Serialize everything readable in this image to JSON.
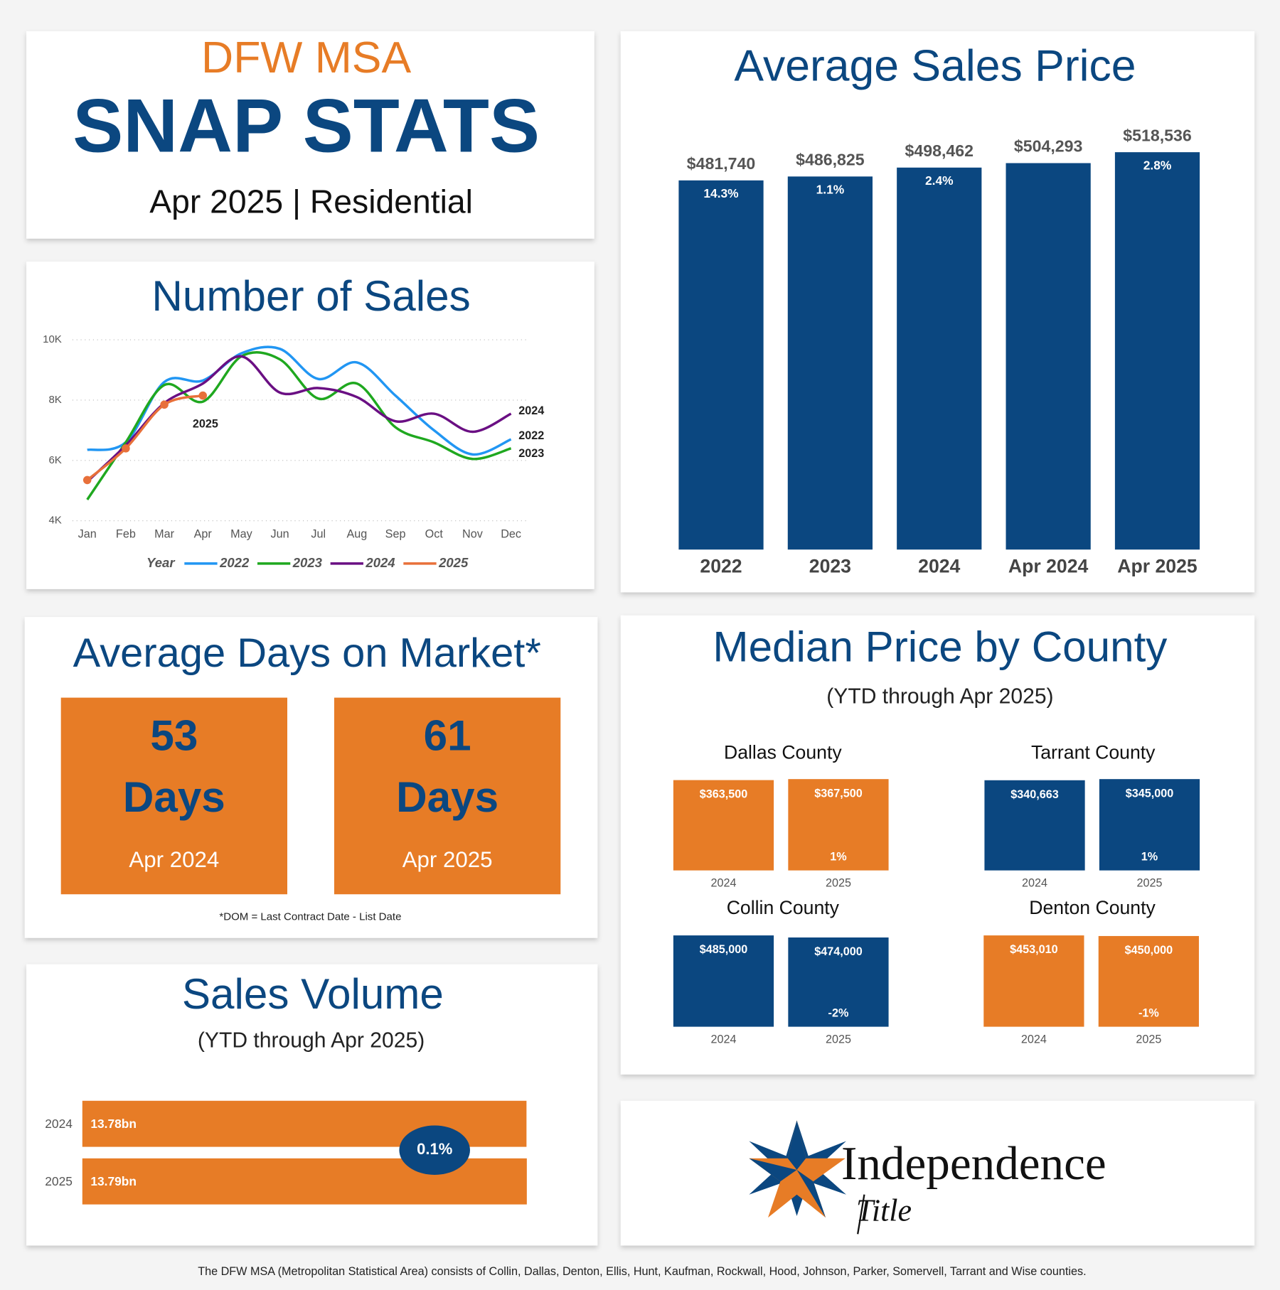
{
  "header": {
    "region": "DFW MSA",
    "title": "SNAP STATS",
    "subtitle": "Apr 2025 | Residential"
  },
  "chart_data": [
    {
      "type": "line",
      "title": "Number of Sales",
      "categories": [
        "Jan",
        "Feb",
        "Mar",
        "Apr",
        "May",
        "Jun",
        "Jul",
        "Aug",
        "Sep",
        "Oct",
        "Nov",
        "Dec"
      ],
      "ylim": [
        4000,
        10000
      ],
      "yticks": [
        {
          "value": 4000,
          "label": "4K"
        },
        {
          "value": 6000,
          "label": "6K"
        },
        {
          "value": 8000,
          "label": "8K"
        },
        {
          "value": 10000,
          "label": "10K"
        }
      ],
      "grid": true,
      "legend_title": "Year",
      "series": [
        {
          "name": "2022",
          "color": "#2196f3",
          "values": [
            6350,
            6600,
            8600,
            8650,
            9550,
            9700,
            8700,
            9250,
            8150,
            7000,
            6200,
            6700
          ]
        },
        {
          "name": "2023",
          "color": "#1fa81f",
          "values": [
            4700,
            6600,
            8500,
            7950,
            9450,
            9350,
            8050,
            8550,
            7100,
            6600,
            6050,
            6400
          ]
        },
        {
          "name": "2024",
          "color": "#6a0f83",
          "values": [
            5300,
            6500,
            7900,
            8550,
            9450,
            8250,
            8400,
            8100,
            7300,
            7550,
            6950,
            7550
          ]
        },
        {
          "name": "2025",
          "color": "#e8703a",
          "values": [
            5350,
            6400,
            7850,
            8150,
            null,
            null,
            null,
            null,
            null,
            null,
            null,
            null
          ]
        }
      ]
    },
    {
      "type": "bar",
      "title": "Average Sales Price",
      "categories": [
        "2022",
        "2023",
        "2024",
        "Apr 2024",
        "Apr 2025"
      ],
      "values": [
        481740,
        486825,
        498462,
        504293,
        518536
      ],
      "value_labels": [
        "$481,740",
        "$486,825",
        "$498,462",
        "$504,293",
        "$518,536"
      ],
      "change_labels": [
        "14.3%",
        "1.1%",
        "2.4%",
        null,
        "2.8%"
      ],
      "color": "#0b4780"
    },
    {
      "type": "cards",
      "title": "Average Days on Market*",
      "values": [
        53,
        61
      ],
      "unit": "Days",
      "categories": [
        "Apr 2024",
        "Apr 2025"
      ],
      "note": "*DOM = Last Contract Date - List Date",
      "color": "#e77c26"
    },
    {
      "type": "panels",
      "title": "Median Price by County",
      "subtitle": "(YTD through Apr 2025)",
      "panels": [
        {
          "title": "Dallas County",
          "categories": [
            "2024",
            "2025"
          ],
          "values": [
            363500,
            367500
          ],
          "value_labels": [
            "$363,500",
            "$367,500"
          ],
          "change_label": "1%",
          "color": "#e77c26"
        },
        {
          "title": "Tarrant County",
          "categories": [
            "2024",
            "2025"
          ],
          "values": [
            340663,
            345000
          ],
          "value_labels": [
            "$340,663",
            "$345,000"
          ],
          "change_label": "1%",
          "color": "#0b4780"
        },
        {
          "title": "Collin County",
          "categories": [
            "2024",
            "2025"
          ],
          "values": [
            485000,
            474000
          ],
          "value_labels": [
            "$485,000",
            "$474,000"
          ],
          "change_label": "-2%",
          "color": "#0b4780"
        },
        {
          "title": "Denton County",
          "categories": [
            "2024",
            "2025"
          ],
          "values": [
            453010,
            450000
          ],
          "value_labels": [
            "$453,010",
            "$450,000"
          ],
          "change_label": "-1%",
          "color": "#e77c26"
        }
      ]
    },
    {
      "type": "hbar",
      "title": "Sales Volume",
      "subtitle": "(YTD through Apr 2025)",
      "categories": [
        "2024",
        "2025"
      ],
      "values": [
        13.78,
        13.79
      ],
      "value_labels": [
        "13.78bn",
        "13.79bn"
      ],
      "change_label": "0.1%",
      "color": "#e77c26"
    }
  ],
  "logo": {
    "name": "Independence",
    "tagline": "Title"
  },
  "footer": "The DFW MSA (Metropolitan Statistical Area) consists of Collin, Dallas, Denton, Ellis, Hunt, Kaufman, Rockwall, Hood, Johnson, Parker, Somervell, Tarrant and Wise counties."
}
